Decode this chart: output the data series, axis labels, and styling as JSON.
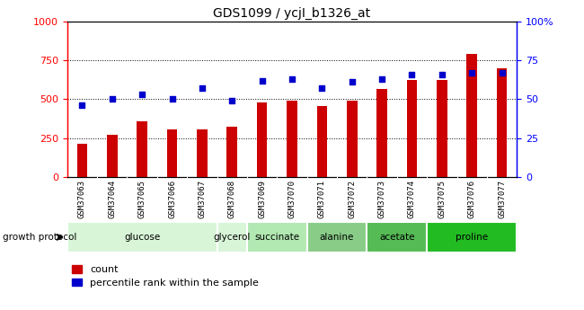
{
  "title": "GDS1099 / ycjI_b1326_at",
  "samples": [
    "GSM37063",
    "GSM37064",
    "GSM37065",
    "GSM37066",
    "GSM37067",
    "GSM37068",
    "GSM37069",
    "GSM37070",
    "GSM37071",
    "GSM37072",
    "GSM37073",
    "GSM37074",
    "GSM37075",
    "GSM37076",
    "GSM37077"
  ],
  "counts": [
    215,
    270,
    355,
    305,
    305,
    325,
    480,
    490,
    455,
    490,
    565,
    625,
    625,
    790,
    700
  ],
  "percentiles": [
    46,
    50,
    53,
    50,
    57,
    49,
    62,
    63,
    57,
    61,
    63,
    66,
    66,
    67,
    67
  ],
  "groups": [
    {
      "label": "glucose",
      "start": 0,
      "end": 4,
      "color": "#d8f5d8"
    },
    {
      "label": "glycerol",
      "start": 5,
      "end": 5,
      "color": "#d8f5d8"
    },
    {
      "label": "succinate",
      "start": 6,
      "end": 7,
      "color": "#b2e8b2"
    },
    {
      "label": "alanine",
      "start": 8,
      "end": 9,
      "color": "#88cc88"
    },
    {
      "label": "acetate",
      "start": 10,
      "end": 11,
      "color": "#55bb55"
    },
    {
      "label": "proline",
      "start": 12,
      "end": 14,
      "color": "#22bb22"
    }
  ],
  "bar_color": "#cc0000",
  "dot_color": "#0000cc",
  "ylim_left": [
    0,
    1000
  ],
  "ylim_right": [
    0,
    100
  ],
  "yticks_left": [
    0,
    250,
    500,
    750,
    1000
  ],
  "ytick_labels_left": [
    "0",
    "250",
    "500",
    "750",
    "1000"
  ],
  "yticks_right": [
    0,
    25,
    50,
    75,
    100
  ],
  "ytick_labels_right": [
    "0",
    "25",
    "50",
    "75",
    "100%"
  ],
  "bar_width": 0.35,
  "plot_bg": "#ffffff",
  "xtick_bg": "#d0d0d0"
}
